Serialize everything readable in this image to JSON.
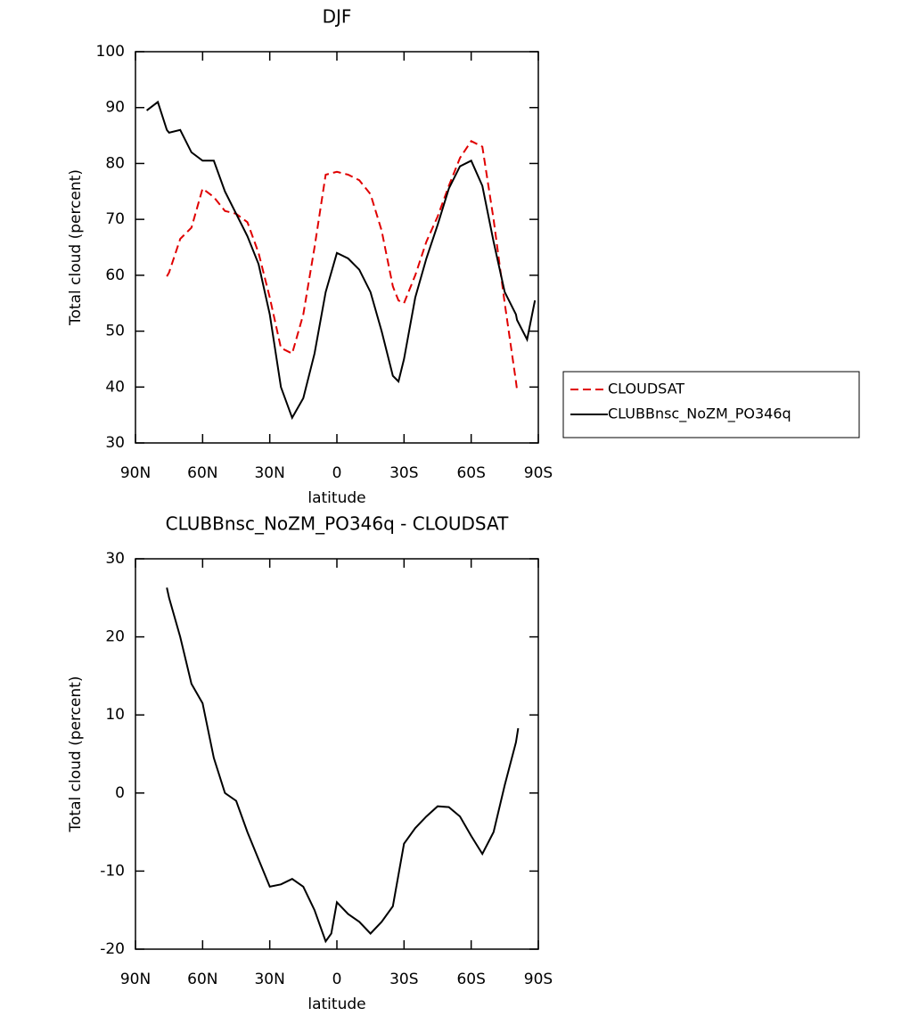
{
  "chart_data": [
    {
      "type": "line",
      "title": "DJF",
      "xlabel": "latitude",
      "ylabel": "Total cloud (percent)",
      "x": [
        85,
        80,
        76,
        75,
        70,
        65,
        60,
        55,
        50,
        45,
        40,
        35,
        30,
        25,
        20,
        15,
        10,
        5,
        0,
        -5,
        -10,
        -15,
        -20,
        -25,
        -27.5,
        -30,
        -35,
        -40,
        -45,
        -50,
        -55,
        -60,
        -65,
        -70,
        -75,
        -80,
        -80.5,
        -85,
        -88.5
      ],
      "series": [
        {
          "name": "CLOUDSAT",
          "color": "#e00000",
          "dash": true,
          "values": [
            null,
            null,
            59.8,
            60.5,
            66.5,
            68.5,
            75.5,
            74,
            71.5,
            71,
            69.5,
            64,
            56,
            47,
            46,
            53,
            65,
            78,
            78.5,
            78,
            77,
            74.5,
            68,
            58,
            55.5,
            55,
            60,
            66,
            70.5,
            76,
            81,
            84,
            83,
            70,
            55,
            41,
            39.5,
            null,
            null
          ]
        },
        {
          "name": "CLUBBnsc_NoZM_PO346q",
          "color": "#000000",
          "dash": false,
          "values": [
            89.5,
            91,
            86,
            85.5,
            86,
            82,
            80.5,
            80.5,
            75,
            71,
            67,
            62,
            53,
            40,
            34.5,
            38,
            46,
            57,
            64,
            63,
            61,
            57,
            50,
            42,
            41,
            45,
            56,
            63,
            69,
            75.5,
            79.5,
            80.5,
            76,
            66,
            57,
            53,
            52,
            48.5,
            55.5
          ]
        }
      ],
      "xlim": [
        90,
        -90
      ],
      "xticks": [
        {
          "value": 90,
          "label": "90N"
        },
        {
          "value": 60,
          "label": "60N"
        },
        {
          "value": 30,
          "label": "30N"
        },
        0,
        {
          "value": -30,
          "label": "30S"
        },
        {
          "value": -60,
          "label": "60S"
        },
        {
          "value": -90,
          "label": "90S"
        }
      ],
      "ylim": [
        30,
        100
      ],
      "yticks": [
        30,
        40,
        50,
        60,
        70,
        80,
        90,
        100
      ],
      "legend": "right"
    },
    {
      "type": "line",
      "title": "CLUBBnsc_NoZM_PO346q - CLOUDSAT",
      "xlabel": "latitude",
      "ylabel": "Total cloud (percent)",
      "x": [
        76,
        75,
        70,
        65,
        60,
        55,
        50,
        45,
        40,
        35,
        30,
        25,
        20,
        15,
        10,
        5,
        2.5,
        0,
        -5,
        -10,
        -15,
        -20,
        -25,
        -30,
        -35,
        -40,
        -45,
        -50,
        -55,
        -60,
        -65,
        -70,
        -75,
        -80,
        -81
      ],
      "series": [
        {
          "color": "#000000",
          "values": [
            26.3,
            25,
            20,
            14,
            11.5,
            4.5,
            0,
            -1,
            -5,
            -8.5,
            -12,
            -11.7,
            -11,
            -12,
            -15,
            -19,
            -18,
            -14,
            -15.5,
            -16.5,
            -18,
            -16.5,
            -14.5,
            -6.5,
            -4.5,
            -3,
            -1.7,
            -1.8,
            -3,
            -5.5,
            -7.8,
            -5,
            1,
            6.5,
            8.3
          ]
        }
      ],
      "xlim": [
        90,
        -90
      ],
      "xticks": [
        {
          "value": 90,
          "label": "90N"
        },
        {
          "value": 60,
          "label": "60N"
        },
        {
          "value": 30,
          "label": "30N"
        },
        0,
        {
          "value": -30,
          "label": "30S"
        },
        {
          "value": -60,
          "label": "60S"
        },
        {
          "value": -90,
          "label": "90S"
        }
      ],
      "ylim": [
        -20,
        30
      ],
      "yticks": [
        -20,
        -10,
        0,
        10,
        20,
        30
      ]
    }
  ]
}
